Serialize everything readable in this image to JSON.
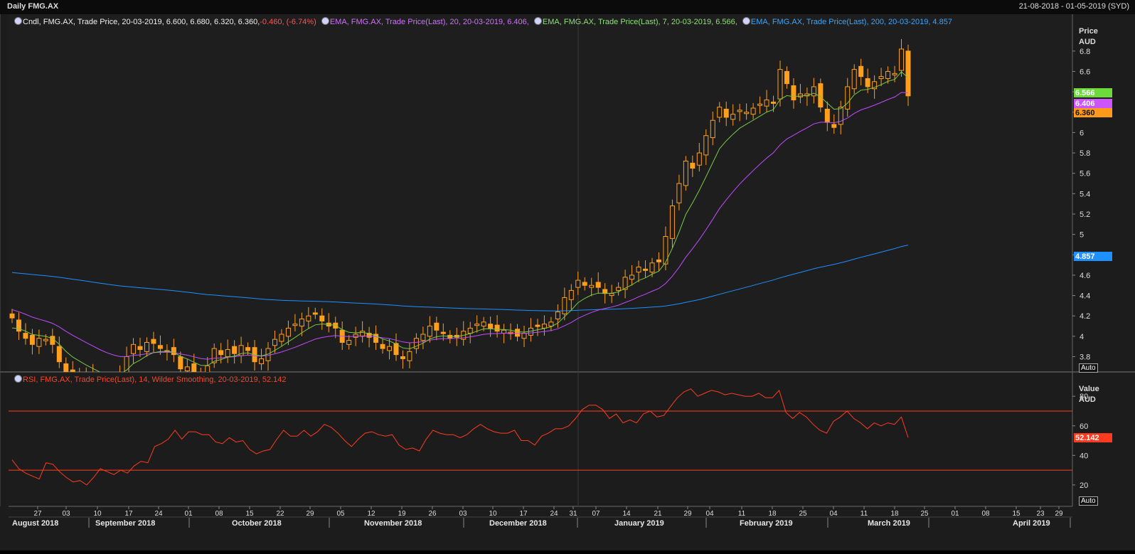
{
  "window": {
    "title": "Daily FMG.AX",
    "range": "21-08-2018 - 01-05-2019 (SYD)"
  },
  "legend_price": [
    {
      "text": "Cndl, FMG.AX, Trade Price, 20-03-2019, 6.600, 6.680, 6.320, 6.360, ",
      "color": "#f0f0f0"
    },
    {
      "text": "-0.460, (-6.74%)",
      "color": "#ff5555"
    },
    {
      "text": "EMA, FMG.AX, Trade Price(Last),  20,  20-03-2019, 6.406,",
      "color": "#d070ff"
    },
    {
      "text": "EMA, FMG.AX, Trade Price(Last),  7,  20-03-2019, 6.566,",
      "color": "#8fe07a"
    },
    {
      "text": "EMA, FMG.AX, Trade Price(Last),  200,  20-03-2019, 4.857",
      "color": "#3aa6ff"
    }
  ],
  "legend_rsi": {
    "text": "RSI, FMG.AX, Trade Price(Last),  14,  Wilder Smoothing,  20-03-2019, 52.142",
    "color": "#ff4422"
  },
  "price_axis": {
    "title": "Price",
    "unit": "AUD",
    "auto": "Auto",
    "ticks": [
      "6.8",
      "6.6",
      "6.4",
      "6.2",
      "6",
      "5.8",
      "5.6",
      "5.4",
      "5.2",
      "5",
      "4.8",
      "4.6",
      "4.4",
      "4.2",
      "4",
      "3.8"
    ]
  },
  "rsi_axis": {
    "title": "Value",
    "unit": "AUD",
    "auto": "Auto",
    "ticks": [
      "80",
      "60",
      "40",
      "20"
    ]
  },
  "badges": [
    {
      "text": "6.566",
      "color": "#6cdb3a",
      "value": 6.566
    },
    {
      "text": "6.406",
      "color": "#cc55ff",
      "value": 6.406
    },
    {
      "text": "6.360",
      "color": "#ff9a1a",
      "value": 6.36
    },
    {
      "text": "4.857",
      "color": "#1e90ff",
      "value": 4.857
    }
  ],
  "rsi_badge": {
    "text": "52.142",
    "color": "#ff3b1f",
    "value": 52.142
  },
  "date_ticks": [
    "27",
    "03",
    "10",
    "17",
    "24",
    "01",
    "08",
    "15",
    "22",
    "29",
    "05",
    "12",
    "19",
    "26",
    "03",
    "10",
    "17",
    "24",
    "31",
    "07",
    "14",
    "21",
    "29",
    "04",
    "11",
    "18",
    "25",
    "04",
    "11",
    "18",
    "25",
    "01",
    "08",
    "15",
    "23",
    "29"
  ],
  "months": [
    "August 2018",
    "September 2018",
    "October 2018",
    "November 2018",
    "December 2018",
    "January 2019",
    "February 2019",
    "March 2019",
    "April 2019"
  ],
  "colors": {
    "candle": "#ff9f1c",
    "ema7": "#7ac943",
    "ema20": "#c24bff",
    "ema200": "#1e90ff",
    "rsi": "#ff3b1f",
    "bands": "#ff3b1f"
  },
  "chart_data": [
    {
      "type": "candlestick",
      "title": "Daily FMG.AX",
      "ylabel": "Price AUD",
      "ylim": [
        3.65,
        7.05
      ],
      "x_range": [
        "2018-08-21",
        "2019-05-01"
      ],
      "series": [
        {
          "name": "Cndl, FMG.AX, Trade Price",
          "close": [
            4.18,
            4.05,
            3.98,
            3.92,
            3.98,
            3.97,
            3.92,
            3.75,
            3.64,
            3.63,
            3.64,
            3.6,
            3.58,
            3.55,
            3.56,
            3.6,
            3.64,
            3.8,
            3.92,
            3.87,
            3.94,
            3.93,
            3.88,
            3.86,
            3.82,
            3.68,
            3.7,
            3.65,
            3.62,
            3.71,
            3.88,
            3.82,
            3.87,
            3.83,
            3.91,
            3.86,
            3.75,
            3.78,
            3.88,
            3.97,
            4.02,
            4.08,
            4.12,
            4.17,
            4.2,
            4.22,
            4.15,
            4.1,
            4.08,
            3.94,
            3.96,
            4.02,
            4.05,
            3.99,
            3.94,
            3.88,
            3.9,
            3.82,
            3.78,
            3.85,
            3.98,
            4.02,
            4.1,
            4.06,
            4.03,
            3.98,
            3.99,
            4.05,
            4.08,
            4.12,
            4.14,
            4.08,
            4.05,
            4.06,
            4.04,
            4.0,
            4.03,
            4.08,
            4.1,
            4.12,
            4.14,
            4.24,
            4.38,
            4.45,
            4.55,
            4.5,
            4.5,
            4.48,
            4.42,
            4.42,
            4.48,
            4.58,
            4.6,
            4.68,
            4.65,
            4.72,
            4.73,
            4.98,
            5.28,
            5.5,
            5.72,
            5.65,
            5.8,
            5.97,
            6.12,
            6.25,
            6.15,
            6.18,
            6.22,
            6.2,
            6.24,
            6.28,
            6.32,
            6.3,
            6.62,
            6.48,
            6.32,
            6.38,
            6.38,
            6.45,
            6.25,
            6.1,
            6.05,
            6.25,
            6.45,
            6.62,
            6.55,
            6.45,
            6.5,
            6.55,
            6.6,
            6.58,
            6.82,
            6.36
          ]
        },
        {
          "name": "EMA 7",
          "values_first_last": [
            4.05,
            6.566
          ]
        },
        {
          "name": "EMA 20",
          "values_first_last": [
            4.27,
            6.406
          ]
        },
        {
          "name": "EMA 200",
          "values_first_last": [
            4.63,
            4.857
          ]
        }
      ]
    },
    {
      "type": "line",
      "title": "RSI, FMG.AX, Trade Price(Last), 14, Wilder Smoothing",
      "ylabel": "Value AUD",
      "ylim": [
        6,
        95
      ],
      "reference_lines": [
        70,
        30
      ],
      "series": [
        {
          "name": "RSI 14",
          "values": [
            37,
            31,
            28,
            26,
            24,
            35,
            34,
            29,
            25,
            22,
            23,
            20,
            25,
            31,
            29,
            27,
            30,
            28,
            33,
            36,
            35,
            46,
            48,
            51,
            57,
            51,
            56,
            56,
            54,
            54,
            49,
            48,
            52,
            49,
            50,
            44,
            41,
            43,
            44,
            51,
            57,
            53,
            53,
            57,
            53,
            56,
            61,
            59,
            55,
            50,
            46,
            51,
            55,
            56,
            54,
            53,
            54,
            47,
            44,
            45,
            43,
            51,
            57,
            55,
            54,
            54,
            52,
            54,
            58,
            61,
            58,
            56,
            55,
            55,
            57,
            50,
            50,
            47,
            53,
            55,
            58,
            58,
            60,
            65,
            71,
            74,
            74,
            71,
            65,
            68,
            62,
            64,
            62,
            68,
            70,
            66,
            67,
            73,
            79,
            83,
            85,
            80,
            82,
            84,
            83,
            81,
            82,
            81,
            80,
            80,
            82,
            79,
            79,
            84,
            69,
            65,
            69,
            66,
            61,
            57,
            55,
            63,
            66,
            70,
            65,
            62,
            58,
            62,
            60,
            62,
            61,
            66,
            52
          ]
        }
      ]
    }
  ]
}
